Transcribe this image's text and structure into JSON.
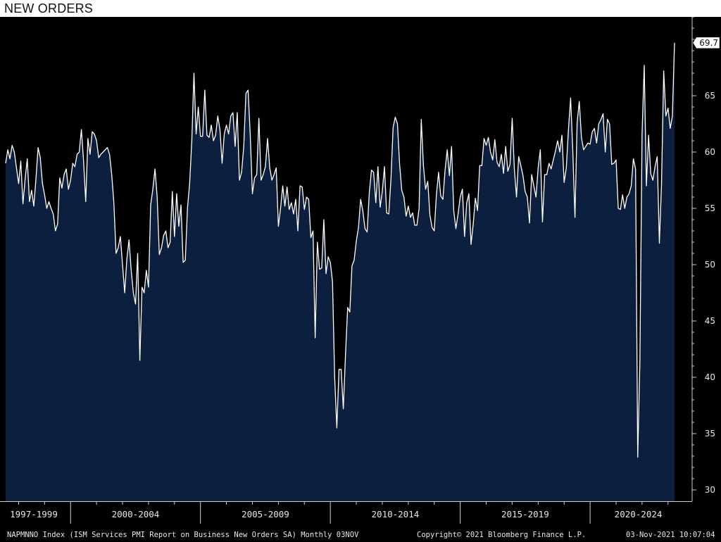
{
  "title": "NEW ORDERS",
  "footer": {
    "left": "NAPMNNO Index (ISM Services PMI Report on Business New Orders SA)  Monthly 03NOV",
    "mid": "Copyright© 2021 Bloomberg Finance L.P.",
    "right": "03-Nov-2021 10:07:04"
  },
  "colors": {
    "background": "#000000",
    "area_fill": "#0c1f3f",
    "line": "#ffffff",
    "axis": "#d0d0d0"
  },
  "chart_data": {
    "type": "area",
    "title": "NEW ORDERS",
    "ylim": [
      29,
      72
    ],
    "yticks": [
      30,
      35,
      40,
      45,
      50,
      55,
      60,
      65
    ],
    "x_period_labels": [
      "1997-1999",
      "2000-2004",
      "2005-2009",
      "2010-2014",
      "2015-2019",
      "2020-2024"
    ],
    "last_value_label": "69.7",
    "grid": false,
    "series": [
      {
        "frequency": "Monthly",
        "start": "1997-07",
        "end": "2021-10",
        "values": [
          59.0,
          60.2,
          59.4,
          60.6,
          60.0,
          58.6,
          57.2,
          59.2,
          55.4,
          57.6,
          59.4,
          55.6,
          56.6,
          55.2,
          57.6,
          60.4,
          59.5,
          57.2,
          56.2,
          55.0,
          55.6,
          55.0,
          54.5,
          53.0,
          53.6,
          57.7,
          56.8,
          58.0,
          58.5,
          56.7,
          57.5,
          59.0,
          58.7,
          59.8,
          60.0,
          62.0,
          59.2,
          55.6,
          61.2,
          59.8,
          61.8,
          61.6,
          61.0,
          59.5,
          59.8,
          60.0,
          60.2,
          60.4,
          59.8,
          58.0,
          55.5,
          51.0,
          51.5,
          52.5,
          50.0,
          47.5,
          50.5,
          52.2,
          49.5,
          47.5,
          46.5,
          51.0,
          41.5,
          48.0,
          47.5,
          49.5,
          48.0,
          55.3,
          56.7,
          58.5,
          56.0,
          50.9,
          51.5,
          52.6,
          53.0,
          51.5,
          52.0,
          56.5,
          52.5,
          56.3,
          53.4,
          55.3,
          50.2,
          50.4,
          55.0,
          57.2,
          61.0,
          67.0,
          61.6,
          64.0,
          61.4,
          61.4,
          65.5,
          61.5,
          61.3,
          62.4,
          61.0,
          61.5,
          63.2,
          62.0,
          59.0,
          61.6,
          62.4,
          61.6,
          63.2,
          63.5,
          60.5,
          63.5,
          57.5,
          58.2,
          60.5,
          65.2,
          65.5,
          61.5,
          56.3,
          57.7,
          58.0,
          63.0,
          57.5,
          58.0,
          58.7,
          61.2,
          58.6,
          57.5,
          58.0,
          58.6,
          53.4,
          55.0,
          57.0,
          55.2,
          56.9,
          54.9,
          55.5,
          54.5,
          55.8,
          53.0,
          57.0,
          56.9,
          54.9,
          56.0,
          55.8,
          52.4,
          53.0,
          43.5,
          52.0,
          49.6,
          49.7,
          54.0,
          49.2,
          50.7,
          50.2,
          48.5,
          40.0,
          35.5,
          40.7,
          40.7,
          37.2,
          42.0,
          46.2,
          45.8,
          49.9,
          50.4,
          52.1,
          53.3,
          55.8,
          54.8,
          53.2,
          52.9,
          56.4,
          58.4,
          58.2,
          55.5,
          58.7,
          55.1,
          56.5,
          58.7,
          54.6,
          54.5,
          57.6,
          62.2,
          63.1,
          62.5,
          58.9,
          56.6,
          56.0,
          54.3,
          55.2,
          54.2,
          54.6,
          53.5,
          53.5,
          55.0,
          62.9,
          58.8,
          56.7,
          57.4,
          54.4,
          53.3,
          53.0,
          56.2,
          58.2,
          56.1,
          55.8,
          58.4,
          60.2,
          57.9,
          60.5,
          54.8,
          53.2,
          54.5,
          56.0,
          56.7,
          52.5,
          55.5,
          56.3,
          51.8,
          53.6,
          55.9,
          54.8,
          58.8,
          58.8,
          61.2,
          60.6,
          61.3,
          60.0,
          59.3,
          61.1,
          59.1,
          58.7,
          59.8,
          58.1,
          60.5,
          58.3,
          58.9,
          63.0,
          58.5,
          56.0,
          59.6,
          58.8,
          57.9,
          56.5,
          56.0,
          53.7,
          58.0,
          57.0,
          56.0,
          58.6,
          60.2,
          53.8,
          58.0,
          58.0,
          59.0,
          58.5,
          59.3,
          60.1,
          61.0,
          60.0,
          61.5,
          57.3,
          58.6,
          62.0,
          64.8,
          60.1,
          54.2,
          62.6,
          64.5,
          61.3,
          60.2,
          60.5,
          60.8,
          60.7,
          61.8,
          62.1,
          60.8,
          62.5,
          62.9,
          63.4,
          60.0,
          62.9,
          62.5,
          58.9,
          59.0,
          59.3,
          55.0,
          54.9,
          56.2,
          55.0,
          56.0,
          56.3,
          57.0,
          59.4,
          58.5,
          32.9,
          41.4,
          61.6,
          67.7,
          57.0,
          61.5,
          58.1,
          57.5,
          58.7,
          59.6,
          51.9,
          57.2,
          67.2,
          63.2,
          63.9,
          62.1,
          63.2,
          69.7
        ]
      }
    ]
  }
}
